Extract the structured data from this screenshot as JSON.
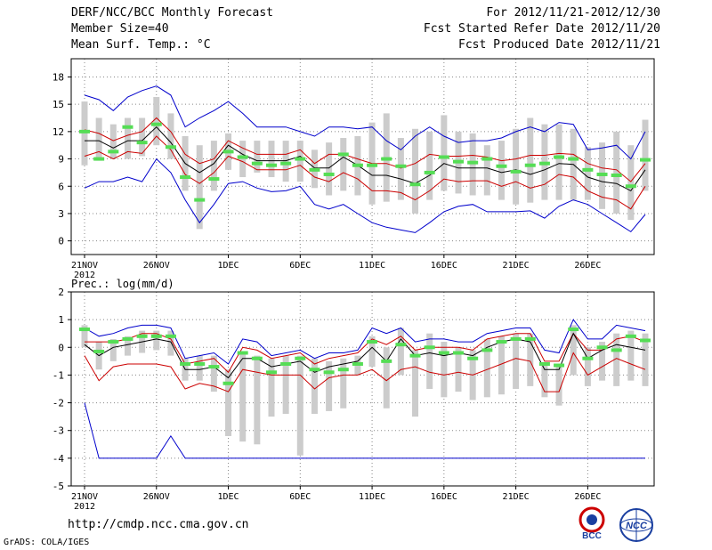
{
  "header": {
    "title": "DERF/NCC/BCC Monthly Forecast",
    "member_size": "Member Size=40",
    "variable": "Mean Surf. Temp.: °C",
    "period": "For 2012/11/21-2012/12/30",
    "refer_date": "Fcst Started Refer Date 2012/11/20",
    "produced_date": "Fcst Produced Date 2012/11/21"
  },
  "footer": {
    "url": "http://cmdp.ncc.cma.gov.cn",
    "credit": "GrADS: COLA/IGES",
    "logo_bcc": "BCC",
    "logo_ncc": "NCC"
  },
  "colors": {
    "max": "#0000cc",
    "min": "#0000cc",
    "upper": "#cc0000",
    "lower": "#cc0000",
    "mean": "#000000",
    "box": "#cccccc",
    "obs": "#55dd55"
  },
  "chart_data": [
    {
      "type": "line",
      "title": "Mean Surf. Temp.: °C",
      "ylim": [
        -1.5,
        20
      ],
      "yticks": [
        0,
        3,
        6,
        9,
        12,
        15,
        18
      ],
      "x_tick_labels": [
        "21NOV",
        "26NOV",
        "1DEC",
        "6DEC",
        "11DEC",
        "16DEC",
        "21DEC",
        "26DEC"
      ],
      "x_tick_indices": [
        0,
        5,
        10,
        15,
        20,
        25,
        30,
        35
      ],
      "x_sublabel": "2012",
      "n_days": 40,
      "series": [
        {
          "name": "max",
          "values": [
            16.0,
            15.5,
            14.3,
            15.8,
            16.5,
            17.0,
            16.0,
            12.5,
            13.5,
            14.3,
            15.3,
            14.0,
            12.5,
            12.5,
            12.5,
            12.0,
            11.5,
            12.5,
            12.5,
            12.3,
            12.5,
            11.0,
            10.0,
            11.5,
            12.5,
            11.5,
            10.8,
            11.0,
            11.0,
            11.3,
            12.0,
            12.5,
            12.0,
            13.0,
            12.8,
            10.0,
            10.2,
            10.5,
            9.0,
            12.0
          ]
        },
        {
          "name": "upper",
          "values": [
            12.2,
            11.8,
            11.0,
            11.6,
            12.0,
            13.5,
            12.0,
            9.5,
            8.5,
            9.0,
            11.0,
            10.2,
            9.5,
            9.5,
            9.5,
            10.0,
            8.5,
            9.5,
            9.5,
            9.0,
            8.5,
            8.5,
            8.0,
            8.5,
            9.5,
            9.3,
            9.3,
            9.4,
            9.2,
            8.8,
            9.0,
            9.4,
            9.4,
            9.6,
            9.5,
            8.5,
            8.0,
            7.8,
            6.5,
            8.5
          ]
        },
        {
          "name": "mean",
          "values": [
            11.0,
            11.0,
            10.2,
            11.0,
            11.0,
            12.5,
            10.8,
            8.5,
            7.5,
            8.5,
            10.5,
            9.5,
            8.8,
            8.8,
            8.8,
            9.3,
            8.0,
            8.0,
            9.2,
            8.3,
            7.2,
            7.2,
            6.8,
            6.3,
            7.2,
            8.5,
            8.0,
            8.0,
            8.0,
            7.5,
            7.8,
            7.3,
            7.8,
            8.5,
            8.4,
            7.0,
            6.5,
            6.3,
            5.5,
            7.8
          ]
        },
        {
          "name": "lower",
          "values": [
            9.3,
            9.8,
            9.0,
            9.8,
            9.6,
            11.5,
            10.0,
            7.3,
            6.3,
            7.5,
            9.3,
            8.7,
            7.8,
            7.8,
            7.8,
            8.3,
            7.0,
            6.5,
            7.5,
            6.8,
            5.5,
            5.5,
            5.3,
            4.5,
            5.5,
            6.8,
            6.5,
            6.6,
            6.6,
            6.0,
            6.5,
            5.8,
            6.2,
            7.3,
            7.0,
            5.5,
            4.8,
            4.5,
            3.5,
            6.0
          ]
        },
        {
          "name": "min",
          "values": [
            5.8,
            6.5,
            6.5,
            7.0,
            6.5,
            9.0,
            7.5,
            4.5,
            2.0,
            4.0,
            6.3,
            6.5,
            5.8,
            5.4,
            5.5,
            6.0,
            4.0,
            3.5,
            4.0,
            3.0,
            2.0,
            1.5,
            1.2,
            0.9,
            2.0,
            3.2,
            3.8,
            4.0,
            3.2,
            3.2,
            3.2,
            3.3,
            2.5,
            3.8,
            4.5,
            4.0,
            3.0,
            2.0,
            1.0,
            2.9
          ]
        }
      ],
      "boxes": [
        [
          8.3,
          15.3
        ],
        [
          8.8,
          13.5
        ],
        [
          9.0,
          12.8
        ],
        [
          9.0,
          13.5
        ],
        [
          9.3,
          13.5
        ],
        [
          10.5,
          15.8
        ],
        [
          9.0,
          14.0
        ],
        [
          5.5,
          11.5
        ],
        [
          1.3,
          10.5
        ],
        [
          5.5,
          11.0
        ],
        [
          7.8,
          11.8
        ],
        [
          7.0,
          11.0
        ],
        [
          7.5,
          11.0
        ],
        [
          7.0,
          11.0
        ],
        [
          6.5,
          11.0
        ],
        [
          6.5,
          11.0
        ],
        [
          5.8,
          10.0
        ],
        [
          5.0,
          10.8
        ],
        [
          5.5,
          11.3
        ],
        [
          5.0,
          11.5
        ],
        [
          4.0,
          13.0
        ],
        [
          4.3,
          14.0
        ],
        [
          4.5,
          11.3
        ],
        [
          3.0,
          12.3
        ],
        [
          4.5,
          12.0
        ],
        [
          5.5,
          13.8
        ],
        [
          5.2,
          12.0
        ],
        [
          5.0,
          11.8
        ],
        [
          5.0,
          10.5
        ],
        [
          4.5,
          11.0
        ],
        [
          4.0,
          12.3
        ],
        [
          4.2,
          13.5
        ],
        [
          4.5,
          12.8
        ],
        [
          4.5,
          12.8
        ],
        [
          4.5,
          12.3
        ],
        [
          4.5,
          10.3
        ],
        [
          3.5,
          10.8
        ],
        [
          3.0,
          12.0
        ],
        [
          2.3,
          10.5
        ],
        [
          5.5,
          13.3
        ]
      ],
      "obs": [
        12.0,
        9.0,
        9.8,
        12.5,
        10.8,
        12.8,
        10.3,
        7.0,
        4.5,
        6.8,
        9.8,
        9.2,
        8.5,
        8.3,
        8.5,
        9.0,
        7.8,
        7.3,
        9.5,
        8.3,
        8.3,
        9.0,
        8.2,
        6.2,
        7.5,
        9.2,
        8.7,
        8.6,
        9.0,
        8.2,
        7.6,
        8.3,
        8.5,
        9.2,
        9.0,
        7.8,
        7.3,
        7.2,
        6.0,
        8.9
      ]
    },
    {
      "type": "line",
      "title": "Prec.: log(mm/d)",
      "ylim": [
        -5,
        2
      ],
      "yticks": [
        2,
        1,
        0,
        -1,
        -2,
        -3,
        -4,
        -5
      ],
      "x_tick_labels": [
        "21NOV",
        "26NOV",
        "1DEC",
        "6DEC",
        "11DEC",
        "16DEC",
        "21DEC",
        "26DEC"
      ],
      "x_tick_indices": [
        0,
        5,
        10,
        15,
        20,
        25,
        30,
        35
      ],
      "x_sublabel": "2012",
      "n_days": 40,
      "series": [
        {
          "name": "max",
          "values": [
            0.7,
            0.4,
            0.5,
            0.7,
            0.8,
            0.8,
            0.7,
            -0.4,
            -0.3,
            -0.2,
            -0.6,
            0.3,
            0.2,
            -0.3,
            -0.2,
            -0.1,
            -0.4,
            -0.2,
            -0.2,
            -0.1,
            0.7,
            0.5,
            0.7,
            0.2,
            0.3,
            0.3,
            0.2,
            0.2,
            0.5,
            0.6,
            0.7,
            0.7,
            -0.1,
            -0.2,
            1.0,
            0.3,
            0.3,
            0.8,
            0.7,
            0.6
          ]
        },
        {
          "name": "upper",
          "values": [
            0.2,
            0.2,
            0.2,
            0.3,
            0.5,
            0.5,
            0.3,
            -0.6,
            -0.5,
            -0.4,
            -0.9,
            0.0,
            -0.1,
            -0.4,
            -0.3,
            -0.2,
            -0.6,
            -0.4,
            -0.3,
            -0.2,
            0.3,
            0.1,
            0.4,
            -0.1,
            0.0,
            0.0,
            0.0,
            -0.1,
            0.3,
            0.4,
            0.5,
            0.5,
            -0.5,
            -0.5,
            0.5,
            -0.1,
            -0.1,
            0.3,
            0.4,
            0.2
          ]
        },
        {
          "name": "mean",
          "values": [
            0.1,
            -0.3,
            0.0,
            0.1,
            0.2,
            0.3,
            0.2,
            -0.8,
            -0.8,
            -0.7,
            -1.1,
            -0.4,
            -0.4,
            -0.7,
            -0.6,
            -0.5,
            -0.9,
            -0.7,
            -0.6,
            -0.5,
            0.0,
            -0.5,
            0.3,
            -0.3,
            -0.2,
            -0.3,
            -0.2,
            -0.3,
            0.0,
            0.2,
            0.3,
            0.2,
            -0.8,
            -0.8,
            0.5,
            -0.4,
            -0.1,
            0.1,
            0.0,
            -0.1
          ]
        },
        {
          "name": "lower",
          "values": [
            -0.3,
            -1.2,
            -0.7,
            -0.6,
            -0.6,
            -0.6,
            -0.7,
            -1.5,
            -1.3,
            -1.4,
            -1.6,
            -0.8,
            -0.9,
            -1.0,
            -1.0,
            -1.0,
            -1.5,
            -1.1,
            -1.0,
            -1.0,
            -0.8,
            -1.2,
            -0.8,
            -0.7,
            -0.9,
            -1.0,
            -0.9,
            -1.0,
            -0.8,
            -0.6,
            -0.4,
            -0.5,
            -1.6,
            -1.6,
            -0.2,
            -1.0,
            -0.7,
            -0.4,
            -0.6,
            -0.8
          ]
        },
        {
          "name": "min",
          "values": [
            -2.0,
            -4.0,
            -4.0,
            -4.0,
            -4.0,
            -4.0,
            -3.2,
            -4.0,
            -4.0,
            -4.0,
            -4.0,
            -4.0,
            -4.0,
            -4.0,
            -4.0,
            -4.0,
            -4.0,
            -4.0,
            -4.0,
            -4.0,
            -4.0,
            -4.0,
            -4.0,
            -4.0,
            -4.0,
            -4.0,
            -4.0,
            -4.0,
            -4.0,
            -4.0,
            -4.0,
            -4.0,
            -4.0,
            -4.0,
            -4.0,
            -4.0,
            -4.0,
            -4.0,
            -4.0,
            -4.0
          ]
        },
        {
          "name": "gap",
          "values": []
        }
      ],
      "boxes": [
        [
          0.0,
          0.8
        ],
        [
          -0.8,
          0.2
        ],
        [
          -0.5,
          0.3
        ],
        [
          -0.3,
          0.4
        ],
        [
          -0.2,
          0.6
        ],
        [
          -0.1,
          0.6
        ],
        [
          -0.3,
          0.6
        ],
        [
          -1.2,
          -0.4
        ],
        [
          -1.2,
          -0.3
        ],
        [
          -1.6,
          -0.3
        ],
        [
          -3.2,
          -0.8
        ],
        [
          -3.4,
          -0.2
        ],
        [
          -3.5,
          -0.3
        ],
        [
          -2.5,
          -0.4
        ],
        [
          -2.4,
          -0.3
        ],
        [
          -3.9,
          -0.3
        ],
        [
          -2.4,
          -0.4
        ],
        [
          -2.3,
          -0.5
        ],
        [
          -2.2,
          -0.4
        ],
        [
          -1.0,
          -0.3
        ],
        [
          -0.7,
          0.4
        ],
        [
          -2.2,
          0.0
        ],
        [
          -1.0,
          0.7
        ],
        [
          -2.5,
          -0.1
        ],
        [
          -1.5,
          0.5
        ],
        [
          -1.8,
          0.2
        ],
        [
          -1.6,
          0.0
        ],
        [
          -1.9,
          -0.1
        ],
        [
          -1.8,
          0.3
        ],
        [
          -1.7,
          0.4
        ],
        [
          -1.5,
          0.5
        ],
        [
          -1.4,
          0.5
        ],
        [
          -1.8,
          -0.6
        ],
        [
          -2.1,
          -0.6
        ],
        [
          -1.0,
          0.8
        ],
        [
          -1.4,
          0.0
        ],
        [
          -1.2,
          0.2
        ],
        [
          -1.4,
          0.5
        ],
        [
          -1.2,
          0.6
        ],
        [
          -1.4,
          0.5
        ]
      ],
      "obs": [
        0.65,
        -0.15,
        0.2,
        0.3,
        0.4,
        0.4,
        0.4,
        -0.6,
        -0.6,
        -0.7,
        -1.3,
        -0.2,
        -0.4,
        -0.9,
        -0.6,
        -0.4,
        -0.8,
        -0.9,
        -0.8,
        -0.6,
        0.2,
        -0.5,
        0.1,
        -0.3,
        0.0,
        -0.2,
        -0.2,
        -0.4,
        -0.1,
        0.2,
        0.3,
        0.3,
        -0.6,
        -0.65,
        0.65,
        -0.4,
        0.0,
        -0.1,
        0.4,
        0.25
      ]
    }
  ]
}
